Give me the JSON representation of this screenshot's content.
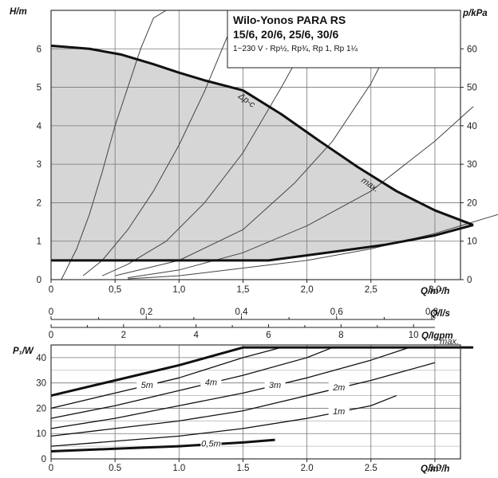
{
  "chart_data": [
    {
      "type": "line",
      "title_box": {
        "title": "Wilo-Yonos PARA RS",
        "models": "15/6, 20/6, 25/6, 30/6",
        "spec": "1~230 V - Rp½, Rp¾, Rp 1, Rp 1¼"
      },
      "xlabel": "Q/m³/h",
      "ylabel_left": "H/m",
      "ylabel_right": "p/kPa",
      "xlim": [
        0,
        3.2
      ],
      "ylim_left": [
        0,
        7
      ],
      "ylim_right": [
        0,
        70
      ],
      "xticks": [
        "0",
        "0,5",
        "1,0",
        "1,5",
        "2,0",
        "2,5",
        "3,0"
      ],
      "yticks_left": [
        "0",
        "1",
        "2",
        "3",
        "4",
        "5",
        "6"
      ],
      "yticks_right": [
        "0",
        "10",
        "20",
        "30",
        "40",
        "50",
        "60"
      ],
      "grid": true,
      "series": [
        {
          "name": "Δp-c",
          "style": "thick",
          "x": [
            0.0,
            0.3,
            0.55,
            0.8,
            1.0,
            1.2,
            1.5
          ],
          "y": [
            6.08,
            6.0,
            5.85,
            5.6,
            5.38,
            5.18,
            4.92
          ]
        },
        {
          "name": "max.",
          "style": "thick",
          "x": [
            1.5,
            1.8,
            2.1,
            2.4,
            2.7,
            3.0,
            3.3
          ],
          "y": [
            4.92,
            4.3,
            3.6,
            2.92,
            2.3,
            1.8,
            1.42
          ]
        },
        {
          "name": "",
          "style": "thick",
          "x": [
            0.0,
            1.7,
            2.2,
            2.6,
            3.0,
            3.3
          ],
          "y": [
            0.5,
            0.5,
            0.72,
            0.9,
            1.15,
            1.42
          ]
        }
      ],
      "system_curves": [
        {
          "x": [
            0.08,
            0.2,
            0.3,
            0.4,
            0.5,
            0.6,
            0.7,
            0.8,
            0.9,
            1.0
          ],
          "y": [
            0.0,
            0.8,
            1.7,
            2.8,
            4.0,
            5.0,
            6.0,
            6.8,
            7.0,
            7.0
          ]
        },
        {
          "x": [
            0.25,
            0.4,
            0.6,
            0.8,
            1.0,
            1.2,
            1.4,
            1.5
          ],
          "y": [
            0.1,
            0.5,
            1.3,
            2.3,
            3.5,
            4.9,
            6.5,
            7.0
          ]
        },
        {
          "x": [
            0.4,
            0.6,
            0.9,
            1.2,
            1.5,
            1.8,
            2.0,
            2.1
          ],
          "y": [
            0.1,
            0.4,
            1.0,
            2.0,
            3.3,
            5.0,
            6.2,
            7.0
          ]
        },
        {
          "x": [
            0.5,
            1.0,
            1.5,
            1.9,
            2.2,
            2.5,
            2.7
          ],
          "y": [
            0.1,
            0.5,
            1.3,
            2.5,
            3.6,
            5.1,
            6.4
          ]
        },
        {
          "x": [
            0.6,
            1.0,
            1.5,
            2.0,
            2.5,
            3.0,
            3.3
          ],
          "y": [
            0.05,
            0.25,
            0.7,
            1.4,
            2.3,
            3.6,
            4.5
          ]
        },
        {
          "x": [
            0.6,
            1.0,
            1.5,
            2.0,
            2.5,
            3.0,
            3.5
          ],
          "y": [
            0.02,
            0.1,
            0.3,
            0.5,
            0.8,
            1.2,
            1.7
          ]
        }
      ],
      "annotations": [
        "Δp-c",
        "max."
      ]
    },
    {
      "type": "axis_scales",
      "scales": [
        {
          "label": "Q/l/s",
          "ticks": [
            "0",
            "0,2",
            "0,4",
            "0,6",
            "0,8"
          ],
          "values": [
            0,
            0.2,
            0.4,
            0.6,
            0.8
          ]
        },
        {
          "label": "Q/Igpm",
          "ticks": [
            "0",
            "2",
            "4",
            "6",
            "8",
            "10"
          ],
          "values": [
            0,
            2,
            4,
            6,
            8,
            10
          ]
        }
      ]
    },
    {
      "type": "line",
      "xlabel": "Q/m³/h",
      "ylabel": "P₁/W",
      "xlim": [
        0,
        3.2
      ],
      "ylim": [
        0,
        45
      ],
      "xticks": [
        "0",
        "0.5",
        "1.0",
        "1.5",
        "2.0",
        "2.5",
        "3.0"
      ],
      "yticks": [
        "0",
        "10",
        "20",
        "30",
        "40"
      ],
      "grid": true,
      "series": [
        {
          "name": "max.",
          "style": "thick",
          "x": [
            0.0,
            0.5,
            1.0,
            1.5,
            2.0,
            2.5,
            3.0,
            3.3
          ],
          "y": [
            25,
            31,
            37,
            44,
            44,
            44,
            44,
            44
          ]
        },
        {
          "name": "5m",
          "x": [
            0.0,
            0.5,
            1.0,
            1.5,
            1.8
          ],
          "y": [
            20,
            26,
            32,
            40,
            44
          ]
        },
        {
          "name": "4m",
          "x": [
            0.0,
            0.5,
            1.0,
            1.5,
            2.0,
            2.2
          ],
          "y": [
            16,
            21,
            27,
            33,
            40,
            44
          ]
        },
        {
          "name": "3m",
          "x": [
            0.0,
            0.5,
            1.0,
            1.5,
            2.0,
            2.5,
            2.8
          ],
          "y": [
            12,
            16,
            21,
            26,
            32,
            39,
            44
          ]
        },
        {
          "name": "2m",
          "x": [
            0.0,
            0.5,
            1.0,
            1.5,
            2.0,
            2.5,
            3.0
          ],
          "y": [
            9,
            12,
            15,
            19,
            25,
            31,
            38
          ]
        },
        {
          "name": "1m",
          "x": [
            0.0,
            0.5,
            1.0,
            1.5,
            2.0,
            2.5,
            2.7
          ],
          "y": [
            5,
            7,
            9,
            12,
            16,
            21,
            25
          ]
        },
        {
          "name": "0,5m",
          "style": "thick",
          "x": [
            0.0,
            0.5,
            1.0,
            1.5,
            1.75
          ],
          "y": [
            3,
            4,
            5,
            6.5,
            7.5
          ]
        }
      ]
    }
  ]
}
